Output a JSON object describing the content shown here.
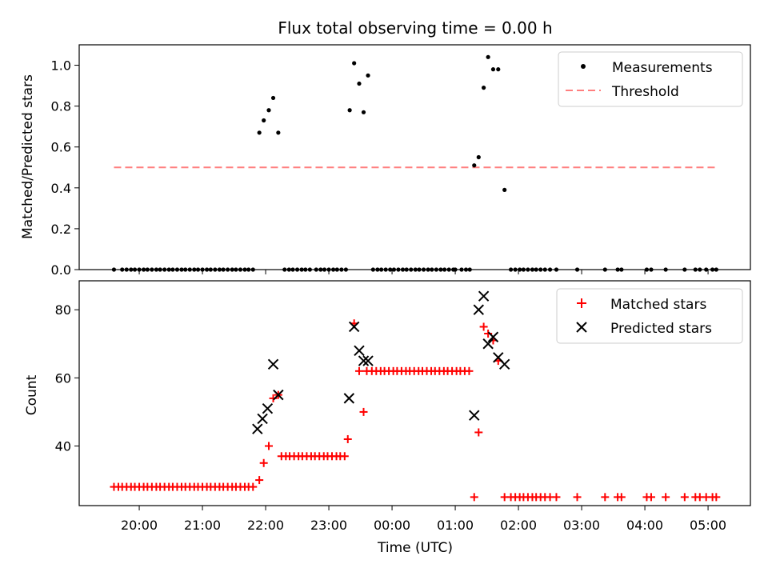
{
  "chart_data": [
    {
      "type": "scatter",
      "title": "Flux total observing time = 0.00 h",
      "xlabel": "",
      "ylabel": "Matched/Predicted stars",
      "ylim": [
        0,
        1.1
      ],
      "yticks": [
        "0.0",
        "0.2",
        "0.4",
        "0.6",
        "0.8",
        "1.0"
      ],
      "ytick_values": [
        0,
        0.2,
        0.4,
        0.6,
        0.8,
        1.0
      ],
      "legend_position": "top-right",
      "legend": [
        "Measurements",
        "Threshold"
      ],
      "series": [
        {
          "name": "Measurements",
          "color": "#000000",
          "points": [
            [
              19.6,
              0
            ],
            [
              19.73,
              0
            ],
            [
              19.8,
              0
            ],
            [
              19.87,
              0
            ],
            [
              19.93,
              0
            ],
            [
              20.0,
              0
            ],
            [
              20.07,
              0
            ],
            [
              20.13,
              0
            ],
            [
              20.2,
              0
            ],
            [
              20.27,
              0
            ],
            [
              20.33,
              0
            ],
            [
              20.4,
              0
            ],
            [
              20.47,
              0
            ],
            [
              20.53,
              0
            ],
            [
              20.6,
              0
            ],
            [
              20.67,
              0
            ],
            [
              20.73,
              0
            ],
            [
              20.8,
              0
            ],
            [
              20.87,
              0
            ],
            [
              20.93,
              0
            ],
            [
              21.0,
              0
            ],
            [
              21.07,
              0
            ],
            [
              21.13,
              0
            ],
            [
              21.2,
              0
            ],
            [
              21.27,
              0
            ],
            [
              21.33,
              0
            ],
            [
              21.4,
              0
            ],
            [
              21.47,
              0
            ],
            [
              21.53,
              0
            ],
            [
              21.6,
              0
            ],
            [
              21.67,
              0
            ],
            [
              21.73,
              0
            ],
            [
              21.8,
              0
            ],
            [
              21.9,
              0.67
            ],
            [
              21.97,
              0.73
            ],
            [
              22.05,
              0.78
            ],
            [
              22.12,
              0.84
            ],
            [
              22.2,
              0.67
            ],
            [
              22.3,
              0
            ],
            [
              22.37,
              0
            ],
            [
              22.43,
              0
            ],
            [
              22.5,
              0
            ],
            [
              22.57,
              0
            ],
            [
              22.63,
              0
            ],
            [
              22.7,
              0
            ],
            [
              22.8,
              0
            ],
            [
              22.87,
              0
            ],
            [
              22.93,
              0
            ],
            [
              23.0,
              0
            ],
            [
              23.07,
              0
            ],
            [
              23.13,
              0
            ],
            [
              23.2,
              0
            ],
            [
              23.27,
              0
            ],
            [
              23.33,
              0.78
            ],
            [
              23.4,
              1.01
            ],
            [
              23.48,
              0.91
            ],
            [
              23.55,
              0.77
            ],
            [
              23.62,
              0.95
            ],
            [
              23.7,
              0
            ],
            [
              23.77,
              0
            ],
            [
              23.83,
              0
            ],
            [
              23.9,
              0
            ],
            [
              23.97,
              0
            ],
            [
              24.03,
              0
            ],
            [
              24.1,
              0
            ],
            [
              24.17,
              0
            ],
            [
              24.23,
              0
            ],
            [
              24.3,
              0
            ],
            [
              24.37,
              0
            ],
            [
              24.43,
              0
            ],
            [
              24.5,
              0
            ],
            [
              24.57,
              0
            ],
            [
              24.63,
              0
            ],
            [
              24.7,
              0
            ],
            [
              24.77,
              0
            ],
            [
              24.83,
              0
            ],
            [
              24.9,
              0
            ],
            [
              24.97,
              0
            ],
            [
              25.0,
              0
            ],
            [
              25.1,
              0
            ],
            [
              25.17,
              0
            ],
            [
              25.23,
              0
            ],
            [
              25.3,
              0.51
            ],
            [
              25.37,
              0.55
            ],
            [
              25.45,
              0.89
            ],
            [
              25.52,
              1.04
            ],
            [
              25.6,
              0.98
            ],
            [
              25.68,
              0.98
            ],
            [
              25.78,
              0.39
            ],
            [
              25.88,
              0
            ],
            [
              25.95,
              0
            ],
            [
              26.02,
              0
            ],
            [
              26.08,
              0
            ],
            [
              26.15,
              0
            ],
            [
              26.22,
              0
            ],
            [
              26.28,
              0
            ],
            [
              26.35,
              0
            ],
            [
              26.42,
              0
            ],
            [
              26.5,
              0
            ],
            [
              26.6,
              0
            ],
            [
              26.93,
              0
            ],
            [
              27.37,
              0
            ],
            [
              27.57,
              0
            ],
            [
              27.63,
              0
            ],
            [
              28.03,
              0
            ],
            [
              28.1,
              0
            ],
            [
              28.33,
              0
            ],
            [
              28.63,
              0
            ],
            [
              28.8,
              0
            ],
            [
              28.87,
              0
            ],
            [
              28.97,
              0
            ],
            [
              29.07,
              0
            ],
            [
              29.13,
              0
            ]
          ]
        },
        {
          "name": "Threshold",
          "color": "#ff7f7f",
          "style": "dashed",
          "points": [
            [
              19.6,
              0.5
            ],
            [
              29.13,
              0.5
            ]
          ]
        }
      ]
    },
    {
      "type": "scatter",
      "title": "",
      "xlabel": "Time (UTC)",
      "ylabel": "Count",
      "ylim": [
        22.5,
        88.5
      ],
      "yticks": [
        "40",
        "60",
        "80"
      ],
      "ytick_values": [
        40,
        60,
        80
      ],
      "xlim": [
        19.05,
        29.67
      ],
      "xticks": [
        "20:00",
        "21:00",
        "22:00",
        "23:00",
        "00:00",
        "01:00",
        "02:00",
        "03:00",
        "04:00",
        "05:00"
      ],
      "xtick_values": [
        20,
        21,
        22,
        23,
        24,
        25,
        26,
        27,
        28,
        29
      ],
      "legend_position": "top-right",
      "legend": [
        "Matched stars",
        "Predicted stars"
      ],
      "series": [
        {
          "name": "Matched stars",
          "color": "#ff0000",
          "marker": "+",
          "points": [
            [
              19.6,
              28
            ],
            [
              19.67,
              28
            ],
            [
              19.73,
              28
            ],
            [
              19.8,
              28
            ],
            [
              19.87,
              28
            ],
            [
              19.93,
              28
            ],
            [
              20.0,
              28
            ],
            [
              20.07,
              28
            ],
            [
              20.13,
              28
            ],
            [
              20.2,
              28
            ],
            [
              20.27,
              28
            ],
            [
              20.33,
              28
            ],
            [
              20.4,
              28
            ],
            [
              20.47,
              28
            ],
            [
              20.53,
              28
            ],
            [
              20.6,
              28
            ],
            [
              20.67,
              28
            ],
            [
              20.73,
              28
            ],
            [
              20.8,
              28
            ],
            [
              20.87,
              28
            ],
            [
              20.93,
              28
            ],
            [
              21.0,
              28
            ],
            [
              21.07,
              28
            ],
            [
              21.13,
              28
            ],
            [
              21.2,
              28
            ],
            [
              21.27,
              28
            ],
            [
              21.33,
              28
            ],
            [
              21.4,
              28
            ],
            [
              21.47,
              28
            ],
            [
              21.53,
              28
            ],
            [
              21.6,
              28
            ],
            [
              21.67,
              28
            ],
            [
              21.73,
              28
            ],
            [
              21.8,
              28
            ],
            [
              21.9,
              30
            ],
            [
              21.97,
              35
            ],
            [
              22.05,
              40
            ],
            [
              22.12,
              54
            ],
            [
              22.2,
              55
            ],
            [
              22.25,
              37
            ],
            [
              22.32,
              37
            ],
            [
              22.38,
              37
            ],
            [
              22.45,
              37
            ],
            [
              22.52,
              37
            ],
            [
              22.58,
              37
            ],
            [
              22.65,
              37
            ],
            [
              22.72,
              37
            ],
            [
              22.78,
              37
            ],
            [
              22.85,
              37
            ],
            [
              22.92,
              37
            ],
            [
              22.98,
              37
            ],
            [
              23.05,
              37
            ],
            [
              23.12,
              37
            ],
            [
              23.18,
              37
            ],
            [
              23.25,
              37
            ],
            [
              23.3,
              42
            ],
            [
              23.4,
              76
            ],
            [
              23.48,
              62
            ],
            [
              23.55,
              50
            ],
            [
              23.6,
              62
            ],
            [
              23.68,
              62
            ],
            [
              23.75,
              62
            ],
            [
              23.82,
              62
            ],
            [
              23.88,
              62
            ],
            [
              23.95,
              62
            ],
            [
              24.02,
              62
            ],
            [
              24.08,
              62
            ],
            [
              24.15,
              62
            ],
            [
              24.22,
              62
            ],
            [
              24.28,
              62
            ],
            [
              24.35,
              62
            ],
            [
              24.42,
              62
            ],
            [
              24.48,
              62
            ],
            [
              24.55,
              62
            ],
            [
              24.62,
              62
            ],
            [
              24.68,
              62
            ],
            [
              24.75,
              62
            ],
            [
              24.82,
              62
            ],
            [
              24.88,
              62
            ],
            [
              24.95,
              62
            ],
            [
              25.02,
              62
            ],
            [
              25.08,
              62
            ],
            [
              25.15,
              62
            ],
            [
              25.22,
              62
            ],
            [
              25.3,
              25
            ],
            [
              25.37,
              44
            ],
            [
              25.45,
              75
            ],
            [
              25.52,
              73
            ],
            [
              25.6,
              71
            ],
            [
              25.68,
              65
            ],
            [
              25.78,
              25
            ],
            [
              25.88,
              25
            ],
            [
              25.95,
              25
            ],
            [
              26.02,
              25
            ],
            [
              26.08,
              25
            ],
            [
              26.15,
              25
            ],
            [
              26.22,
              25
            ],
            [
              26.28,
              25
            ],
            [
              26.35,
              25
            ],
            [
              26.42,
              25
            ],
            [
              26.5,
              25
            ],
            [
              26.6,
              25
            ],
            [
              26.93,
              25
            ],
            [
              27.37,
              25
            ],
            [
              27.57,
              25
            ],
            [
              27.63,
              25
            ],
            [
              28.03,
              25
            ],
            [
              28.1,
              25
            ],
            [
              28.33,
              25
            ],
            [
              28.63,
              25
            ],
            [
              28.8,
              25
            ],
            [
              28.87,
              25
            ],
            [
              28.97,
              25
            ],
            [
              29.07,
              25
            ],
            [
              29.13,
              25
            ]
          ]
        },
        {
          "name": "Predicted stars",
          "color": "#000000",
          "marker": "x",
          "points": [
            [
              21.87,
              45
            ],
            [
              21.95,
              48
            ],
            [
              22.03,
              51
            ],
            [
              22.12,
              64
            ],
            [
              22.2,
              55
            ],
            [
              23.32,
              54
            ],
            [
              23.4,
              75
            ],
            [
              23.48,
              68
            ],
            [
              23.55,
              65
            ],
            [
              23.62,
              65
            ],
            [
              25.3,
              49
            ],
            [
              25.37,
              80
            ],
            [
              25.45,
              84
            ],
            [
              25.52,
              70
            ],
            [
              25.6,
              72
            ],
            [
              25.68,
              66
            ],
            [
              25.78,
              64
            ]
          ]
        }
      ]
    }
  ]
}
